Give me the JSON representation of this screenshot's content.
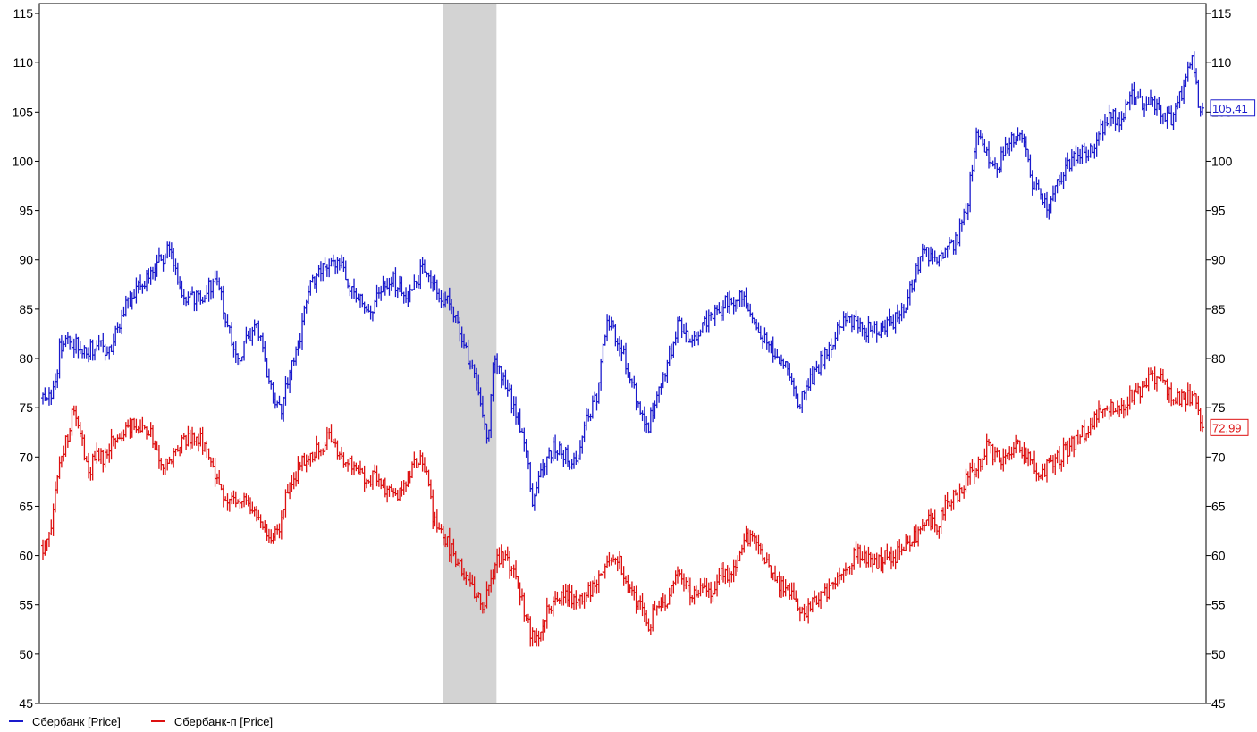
{
  "chart_data": {
    "type": "line",
    "style": "ohlc-bars",
    "y_axis_left": true,
    "y_axis_right": true,
    "ylim": [
      45,
      116
    ],
    "y_ticks": [
      45,
      50,
      55,
      60,
      65,
      70,
      75,
      80,
      85,
      90,
      95,
      100,
      105,
      110,
      115
    ],
    "grid": false,
    "legend_position": "bottom-left",
    "highlight_band": {
      "x_from": 195,
      "x_to": 221,
      "color": "#d3d3d3"
    },
    "x_count": 560,
    "series": [
      {
        "name": "Сбербанк [Price]",
        "color": "#1a1acc",
        "last_value_label": "105,41",
        "anchors": [
          [
            0,
            76
          ],
          [
            6,
            77
          ],
          [
            8,
            81
          ],
          [
            12,
            82
          ],
          [
            20,
            81
          ],
          [
            27,
            81
          ],
          [
            32,
            81
          ],
          [
            35,
            82
          ],
          [
            40,
            85
          ],
          [
            45,
            87
          ],
          [
            55,
            89
          ],
          [
            60,
            91
          ],
          [
            63,
            90
          ],
          [
            68,
            86
          ],
          [
            75,
            86
          ],
          [
            80,
            87
          ],
          [
            85,
            88
          ],
          [
            90,
            83
          ],
          [
            95,
            80
          ],
          [
            100,
            82
          ],
          [
            105,
            83
          ],
          [
            110,
            78
          ],
          [
            113,
            76
          ],
          [
            117,
            75
          ],
          [
            120,
            79
          ],
          [
            125,
            82
          ],
          [
            130,
            87
          ],
          [
            135,
            89
          ],
          [
            140,
            89
          ],
          [
            145,
            90
          ],
          [
            150,
            87
          ],
          [
            155,
            86
          ],
          [
            160,
            85
          ],
          [
            165,
            87
          ],
          [
            170,
            88
          ],
          [
            175,
            87
          ],
          [
            178,
            86
          ],
          [
            185,
            89
          ],
          [
            190,
            88
          ],
          [
            195,
            86
          ],
          [
            200,
            85
          ],
          [
            205,
            82
          ],
          [
            210,
            78
          ],
          [
            215,
            74
          ],
          [
            217,
            71
          ],
          [
            219,
            80
          ],
          [
            223,
            78
          ],
          [
            230,
            75
          ],
          [
            236,
            71
          ],
          [
            238,
            65
          ],
          [
            242,
            68
          ],
          [
            245,
            70
          ],
          [
            250,
            71
          ],
          [
            260,
            69
          ],
          [
            265,
            74
          ],
          [
            270,
            76
          ],
          [
            275,
            84
          ],
          [
            280,
            82
          ],
          [
            285,
            79
          ],
          [
            290,
            75
          ],
          [
            295,
            73
          ],
          [
            300,
            77
          ],
          [
            305,
            80
          ],
          [
            310,
            84
          ],
          [
            315,
            81
          ],
          [
            320,
            83
          ],
          [
            325,
            84
          ],
          [
            330,
            85
          ],
          [
            335,
            86
          ],
          [
            340,
            86
          ],
          [
            345,
            85
          ],
          [
            350,
            82
          ],
          [
            355,
            81
          ],
          [
            360,
            80
          ],
          [
            365,
            78
          ],
          [
            368,
            75
          ],
          [
            372,
            77
          ],
          [
            375,
            78
          ],
          [
            380,
            80
          ],
          [
            385,
            82
          ],
          [
            390,
            84
          ],
          [
            395,
            84
          ],
          [
            400,
            83
          ],
          [
            405,
            83
          ],
          [
            410,
            83
          ],
          [
            415,
            84
          ],
          [
            420,
            85
          ],
          [
            425,
            89
          ],
          [
            430,
            91
          ],
          [
            435,
            90
          ],
          [
            440,
            91
          ],
          [
            445,
            92
          ],
          [
            450,
            95
          ],
          [
            455,
            103
          ],
          [
            460,
            101
          ],
          [
            465,
            99
          ],
          [
            470,
            102
          ],
          [
            475,
            103
          ],
          [
            480,
            100
          ],
          [
            483,
            97
          ],
          [
            485,
            97
          ],
          [
            490,
            95
          ],
          [
            495,
            98
          ],
          [
            500,
            100
          ],
          [
            505,
            101
          ],
          [
            510,
            101
          ],
          [
            515,
            103
          ],
          [
            520,
            105
          ],
          [
            525,
            104
          ],
          [
            530,
            107
          ],
          [
            535,
            106
          ],
          [
            540,
            106
          ],
          [
            545,
            105
          ],
          [
            550,
            104
          ],
          [
            555,
            107
          ],
          [
            560,
            110
          ],
          [
            563,
            106
          ],
          [
            565,
            105.41
          ]
        ]
      },
      {
        "name": "Сбербанк-п [Price]",
        "color": "#dd1111",
        "last_value_label": "72,99",
        "anchors": [
          [
            0,
            61
          ],
          [
            5,
            64
          ],
          [
            8,
            70
          ],
          [
            12,
            72
          ],
          [
            15,
            75
          ],
          [
            18,
            73
          ],
          [
            22,
            68
          ],
          [
            25,
            70
          ],
          [
            30,
            70
          ],
          [
            35,
            72
          ],
          [
            40,
            73
          ],
          [
            45,
            73
          ],
          [
            50,
            73
          ],
          [
            53,
            72
          ],
          [
            57,
            70
          ],
          [
            60,
            69
          ],
          [
            63,
            70
          ],
          [
            68,
            72
          ],
          [
            75,
            72
          ],
          [
            80,
            71
          ],
          [
            85,
            67
          ],
          [
            90,
            66
          ],
          [
            95,
            66
          ],
          [
            100,
            65
          ],
          [
            105,
            64
          ],
          [
            110,
            62
          ],
          [
            115,
            63
          ],
          [
            120,
            67
          ],
          [
            125,
            69
          ],
          [
            130,
            70
          ],
          [
            135,
            71
          ],
          [
            140,
            72
          ],
          [
            145,
            70
          ],
          [
            150,
            69
          ],
          [
            155,
            68
          ],
          [
            160,
            68
          ],
          [
            165,
            67
          ],
          [
            170,
            67
          ],
          [
            175,
            66
          ],
          [
            180,
            69
          ],
          [
            184,
            70
          ],
          [
            188,
            67
          ],
          [
            190,
            64
          ],
          [
            195,
            62
          ],
          [
            200,
            60
          ],
          [
            205,
            58
          ],
          [
            210,
            56
          ],
          [
            215,
            55
          ],
          [
            218,
            57
          ],
          [
            222,
            60
          ],
          [
            228,
            59
          ],
          [
            232,
            57
          ],
          [
            236,
            53
          ],
          [
            240,
            51
          ],
          [
            245,
            54
          ],
          [
            250,
            55
          ],
          [
            255,
            56
          ],
          [
            260,
            55
          ],
          [
            265,
            56
          ],
          [
            270,
            57
          ],
          [
            275,
            59
          ],
          [
            280,
            60
          ],
          [
            285,
            57
          ],
          [
            290,
            55
          ],
          [
            295,
            53
          ],
          [
            300,
            55
          ],
          [
            305,
            56
          ],
          [
            310,
            58
          ],
          [
            315,
            56
          ],
          [
            320,
            57
          ],
          [
            325,
            56
          ],
          [
            330,
            58
          ],
          [
            335,
            58
          ],
          [
            340,
            61
          ],
          [
            345,
            62
          ],
          [
            350,
            60
          ],
          [
            355,
            58
          ],
          [
            360,
            57
          ],
          [
            365,
            56
          ],
          [
            370,
            54
          ],
          [
            375,
            55
          ],
          [
            380,
            56
          ],
          [
            385,
            57
          ],
          [
            390,
            58
          ],
          [
            395,
            60
          ],
          [
            400,
            60
          ],
          [
            405,
            59
          ],
          [
            410,
            60
          ],
          [
            415,
            60
          ],
          [
            420,
            61
          ],
          [
            425,
            62
          ],
          [
            430,
            64
          ],
          [
            435,
            63
          ],
          [
            440,
            65
          ],
          [
            445,
            66
          ],
          [
            450,
            68
          ],
          [
            455,
            69
          ],
          [
            460,
            71
          ],
          [
            465,
            70
          ],
          [
            470,
            70
          ],
          [
            475,
            71
          ],
          [
            480,
            70
          ],
          [
            485,
            68
          ],
          [
            490,
            69
          ],
          [
            495,
            70
          ],
          [
            500,
            71
          ],
          [
            505,
            72
          ],
          [
            510,
            73
          ],
          [
            515,
            75
          ],
          [
            520,
            75
          ],
          [
            525,
            75
          ],
          [
            530,
            76
          ],
          [
            535,
            77
          ],
          [
            540,
            78
          ],
          [
            545,
            78
          ],
          [
            550,
            76
          ],
          [
            555,
            76
          ],
          [
            560,
            76
          ],
          [
            563,
            75
          ],
          [
            565,
            72.99
          ]
        ]
      }
    ]
  },
  "legend": {
    "items": [
      {
        "label": "Сбербанк [Price]",
        "color": "#1a1acc"
      },
      {
        "label": "Сбербанк-п [Price]",
        "color": "#dd1111"
      }
    ]
  }
}
